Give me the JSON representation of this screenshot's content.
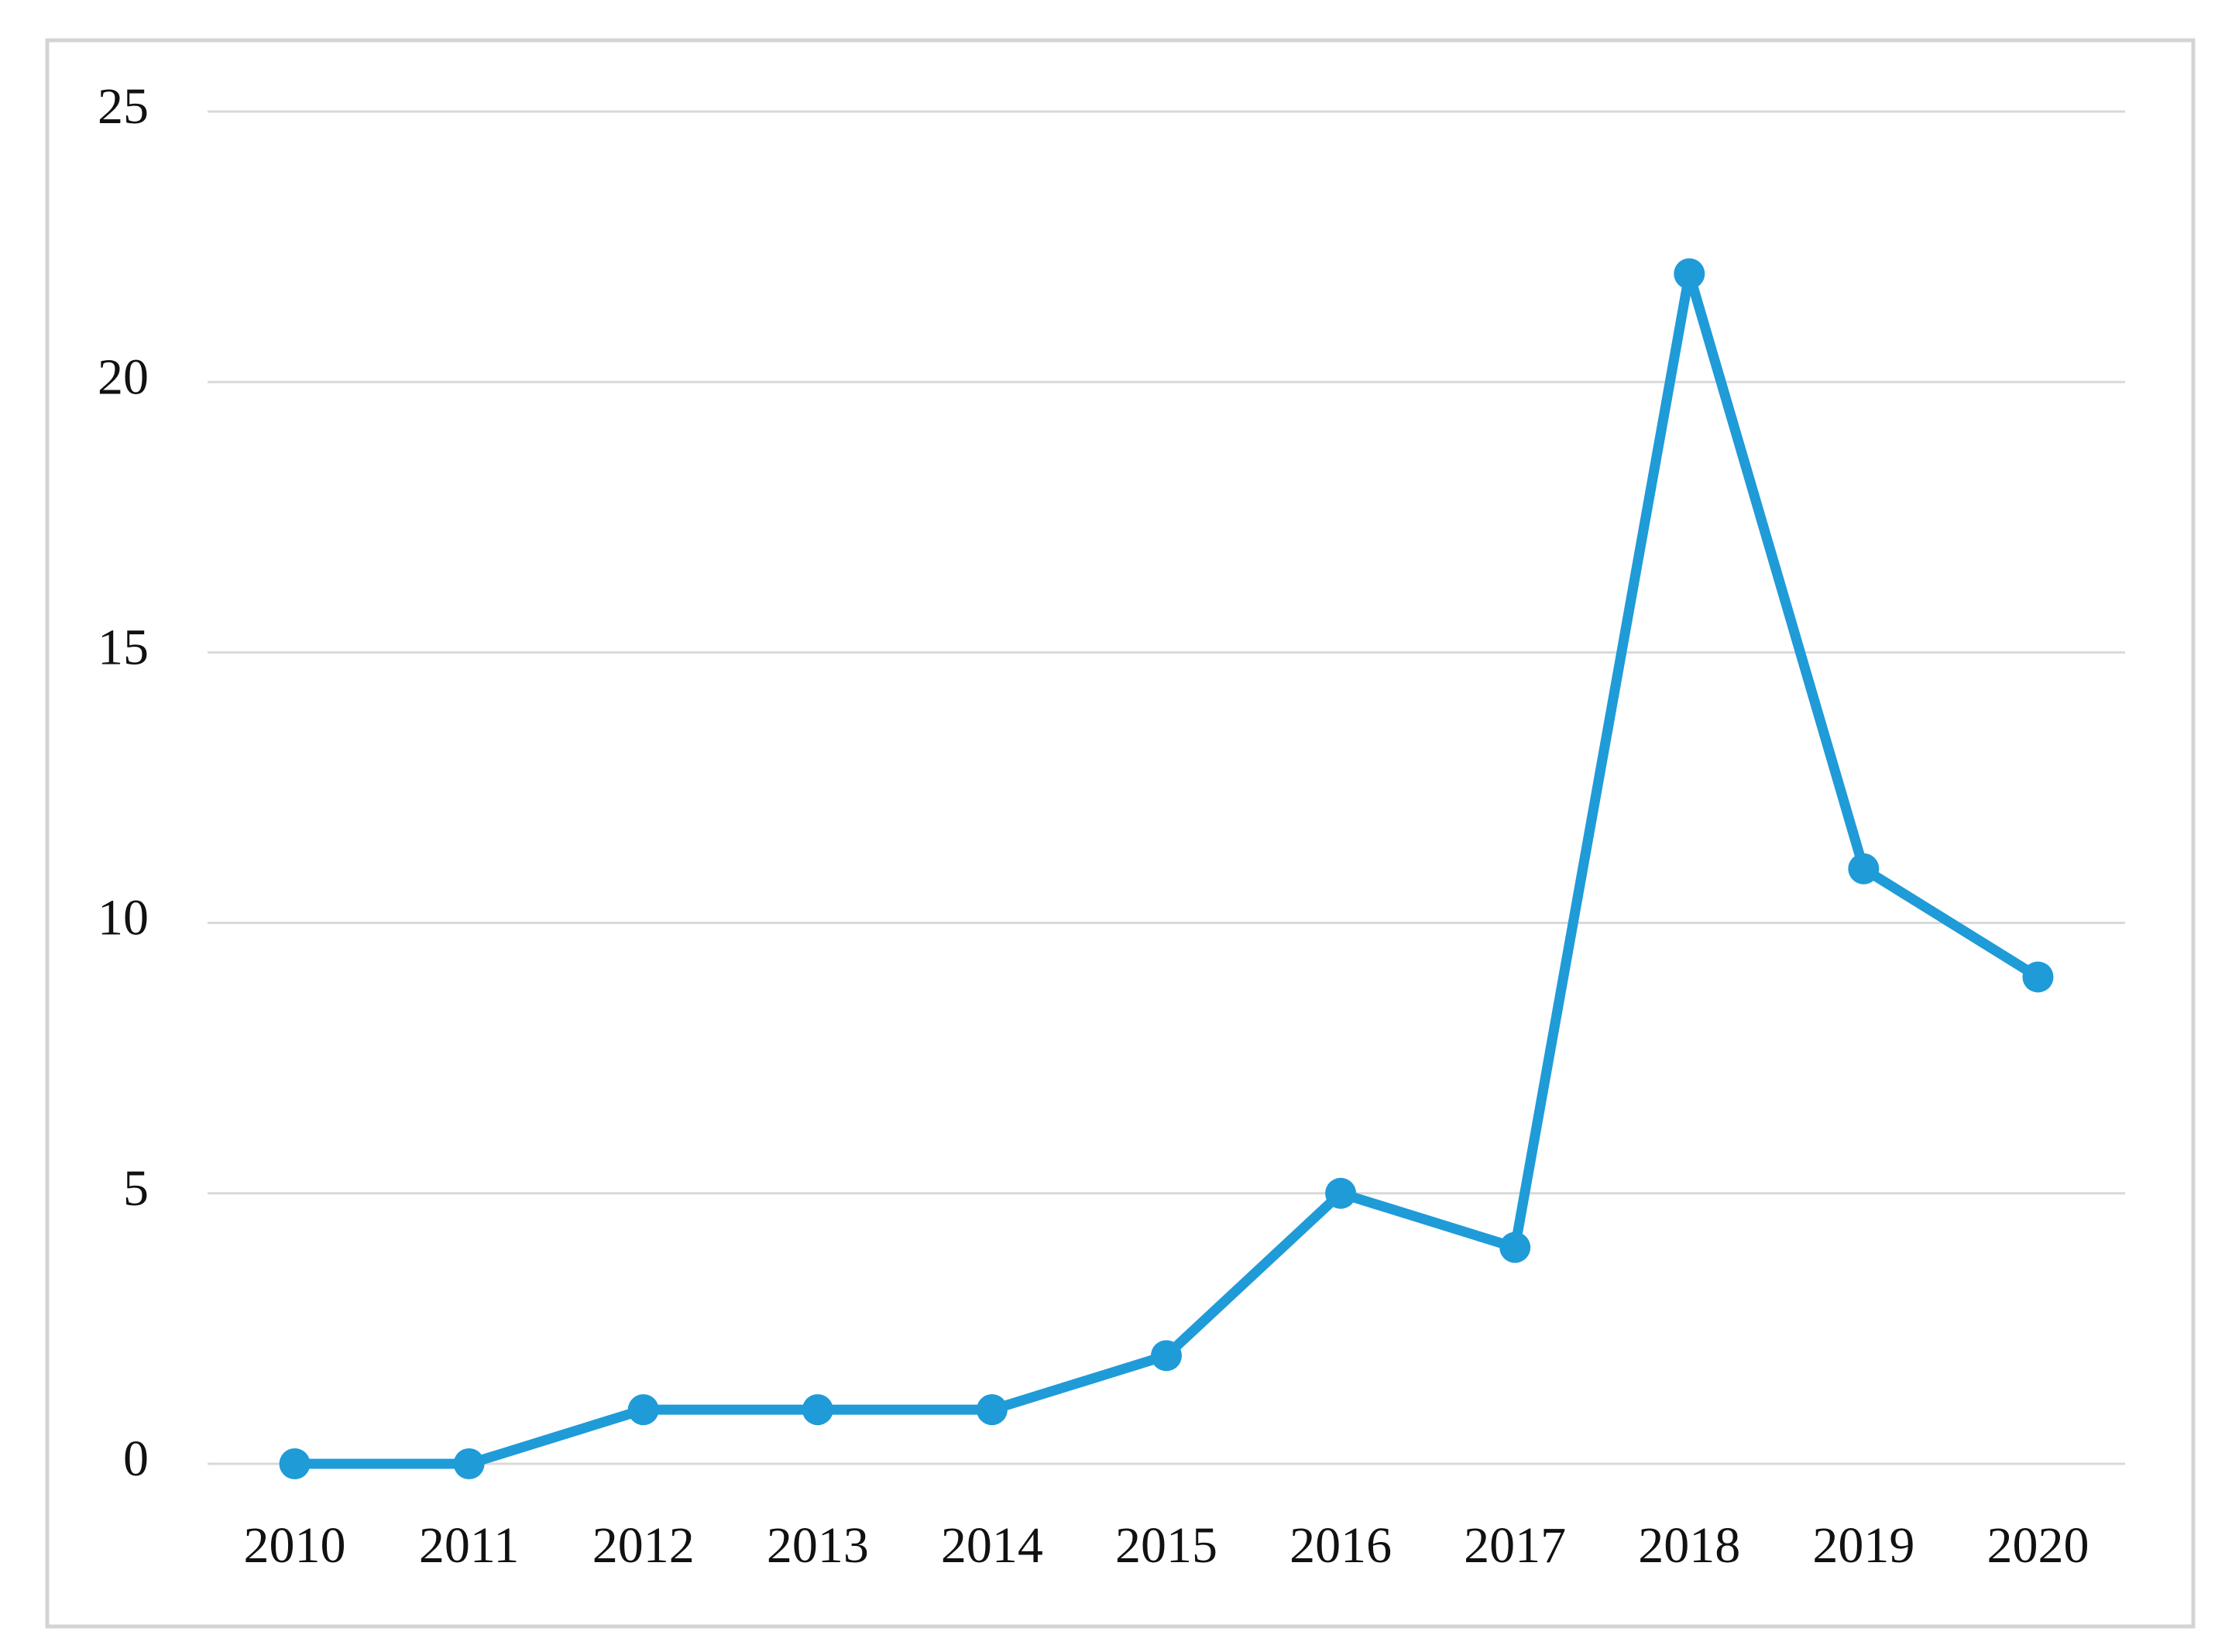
{
  "chart_data": {
    "type": "line",
    "categories": [
      "2010",
      "2011",
      "2012",
      "2013",
      "2014",
      "2015",
      "2016",
      "2017",
      "2018",
      "2019",
      "2020"
    ],
    "values": [
      0,
      0,
      1,
      1,
      1,
      2,
      5,
      4,
      22,
      11,
      9
    ],
    "color": "#1f9bd8",
    "ylim": [
      0,
      25
    ],
    "yticks": [
      0,
      5,
      10,
      15,
      20,
      25
    ],
    "grid": true
  }
}
